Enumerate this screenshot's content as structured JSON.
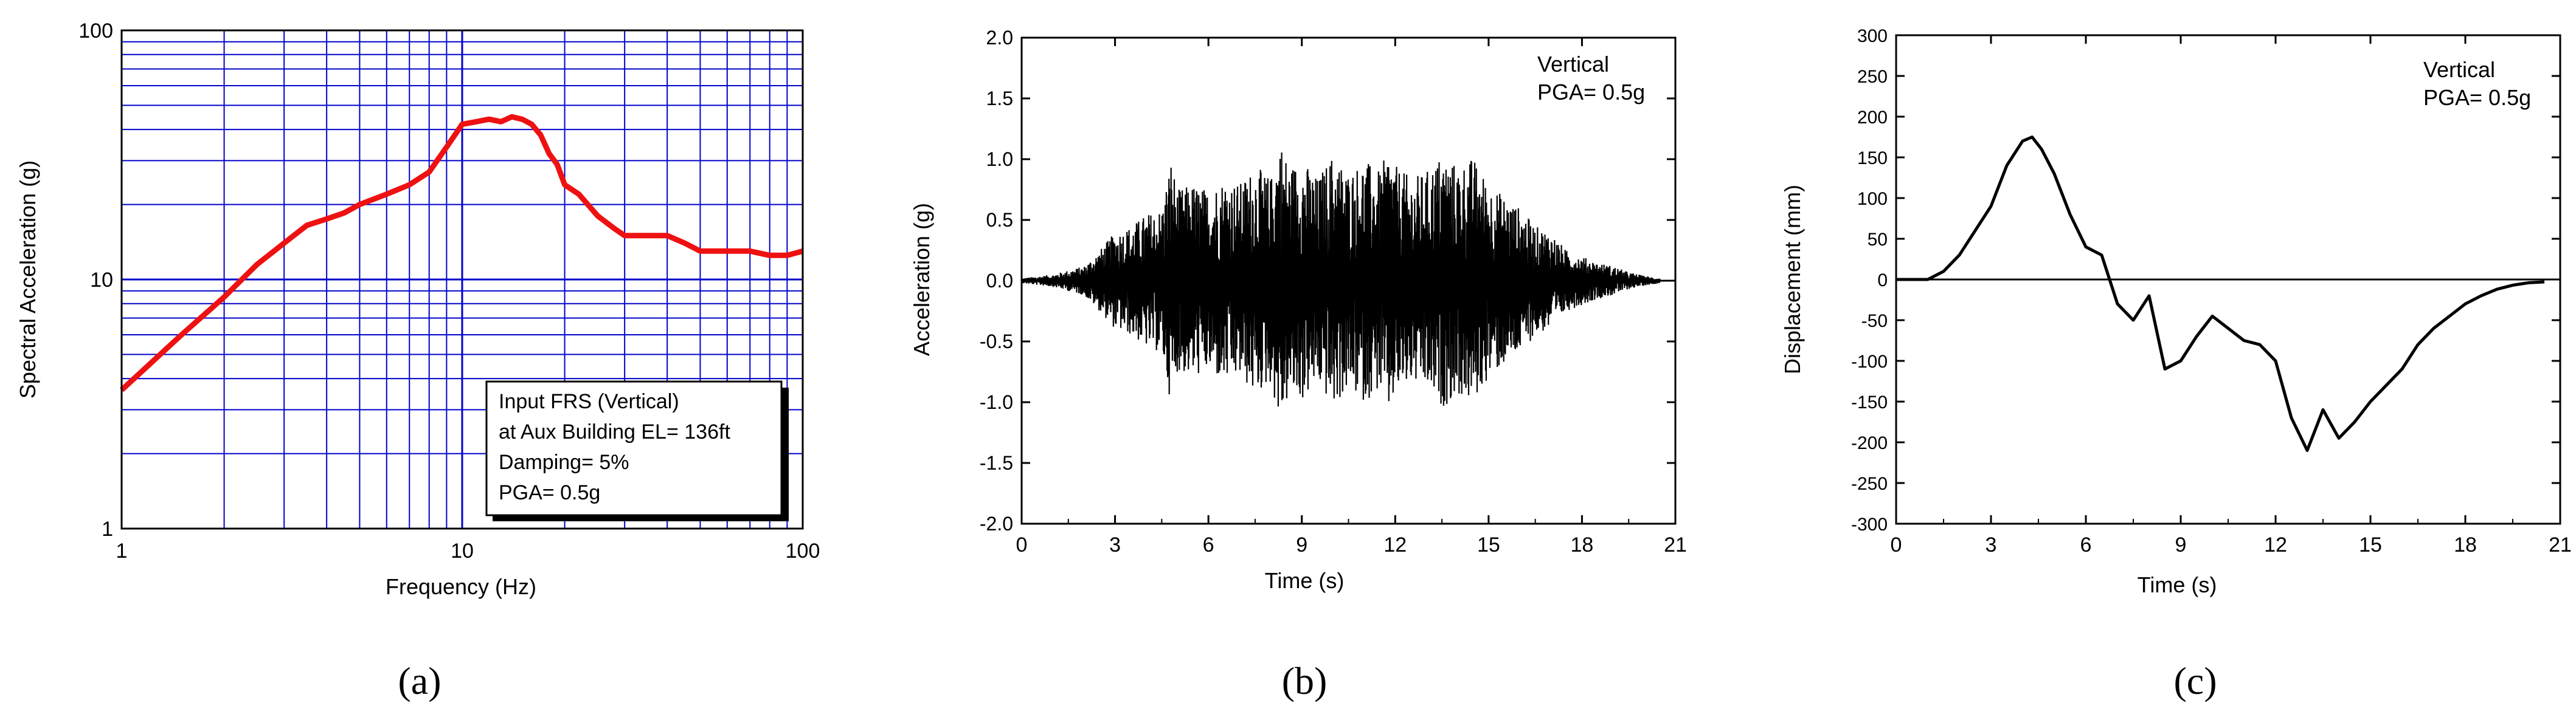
{
  "chart_data": [
    {
      "type": "line",
      "panel_label": "(a)",
      "x_scale": "log",
      "y_scale": "log",
      "xlabel": "Frequency (Hz)",
      "ylabel": "Spectral Acceleration (g)",
      "xlim": [
        1,
        100
      ],
      "ylim": [
        1,
        100
      ],
      "x_ticks": [
        {
          "value": 1,
          "label": "1"
        },
        {
          "value": 10,
          "label": "10"
        },
        {
          "value": 100,
          "label": "100"
        }
      ],
      "y_ticks": [
        {
          "value": 1,
          "label": "1"
        },
        {
          "value": 10,
          "label": "10"
        },
        {
          "value": 100,
          "label": "100"
        }
      ],
      "grid": true,
      "grid_color": "#0000cc",
      "line_color": "#ee1111",
      "legend_position": "bottom-right",
      "legend_lines": [
        "Input FRS (Vertical)",
        "at Aux Building EL= 136ft",
        "Damping= 5%",
        "PGA= 0.5g"
      ],
      "series": [
        {
          "x": [
            1,
            1.5,
            2,
            2.5,
            3,
            3.5,
            4,
            4.5,
            5,
            6,
            7,
            8,
            9,
            10,
            11,
            12,
            13,
            14,
            15,
            16,
            17,
            18,
            19,
            20,
            22,
            25,
            28,
            30,
            35,
            40,
            45,
            50,
            60,
            70,
            80,
            90,
            100
          ],
          "y": [
            3.6,
            6.0,
            8.5,
            11.5,
            14.0,
            16.5,
            17.5,
            18.5,
            20,
            22,
            24,
            27,
            34,
            42,
            43,
            44,
            43,
            45,
            44,
            42,
            38,
            32,
            29,
            24,
            22,
            18,
            16,
            15,
            15,
            15,
            14,
            13,
            13,
            13,
            12.5,
            12.5,
            13
          ]
        }
      ]
    },
    {
      "type": "line",
      "panel_label": "(b)",
      "xlabel": "Time (s)",
      "ylabel": "Acceleration (g)",
      "xlim": [
        0,
        21
      ],
      "ylim": [
        -2.0,
        2.0
      ],
      "x_ticks": [
        0,
        3,
        6,
        9,
        12,
        15,
        18,
        21
      ],
      "y_ticks": [
        "-2.0",
        "-1.5",
        "-1.0",
        "-0.5",
        "0.0",
        "0.5",
        "1.0",
        "1.5",
        "2.0"
      ],
      "grid": false,
      "line_color": "#000000",
      "annotation": [
        "Vertical",
        "PGA= 0.5g"
      ],
      "annotation_position": "top-right",
      "series": [
        {
          "x": [
            0,
            1,
            2,
            2.5,
            3,
            3.5,
            4,
            4.5,
            4.8,
            5,
            5.5,
            6,
            6.5,
            7,
            7.5,
            8,
            8.3,
            8.6,
            9,
            9.5,
            10,
            10.5,
            11,
            11.5,
            11.8,
            12,
            12.5,
            13,
            13.5,
            14,
            14.5,
            15,
            15.5,
            16,
            16.5,
            17,
            17.5,
            18,
            18.5,
            19,
            19.5,
            20,
            20.5
          ],
          "y_envelope": [
            0.02,
            0.05,
            0.12,
            0.25,
            0.4,
            0.45,
            0.55,
            0.6,
            1.02,
            0.75,
            0.8,
            0.75,
            0.85,
            0.8,
            0.95,
            0.85,
            1.18,
            0.95,
            1.0,
            0.85,
            1.05,
            0.9,
            1.0,
            0.9,
            1.1,
            0.95,
            0.85,
            0.9,
            1.05,
            0.95,
            1.02,
            0.8,
            0.7,
            0.6,
            0.45,
            0.4,
            0.25,
            0.2,
            0.15,
            0.12,
            0.07,
            0.04,
            0.02
          ],
          "y_min_annotated": -1.05,
          "y_max_annotated": 1.18
        }
      ]
    },
    {
      "type": "line",
      "panel_label": "(c)",
      "xlabel": "Time (s)",
      "ylabel": "Displacement (mm)",
      "xlim": [
        0,
        21
      ],
      "ylim": [
        -300,
        300
      ],
      "x_ticks": [
        0,
        3,
        6,
        9,
        12,
        15,
        18,
        21
      ],
      "y_ticks": [
        -300,
        -250,
        -200,
        -150,
        -100,
        -50,
        0,
        50,
        100,
        150,
        200,
        250,
        300
      ],
      "grid": false,
      "line_color": "#000000",
      "annotation": [
        "Vertical",
        "PGA= 0.5g"
      ],
      "annotation_position": "top-right",
      "series": [
        {
          "x": [
            0,
            0.5,
            1,
            1.5,
            2,
            2.5,
            3,
            3.5,
            4,
            4.3,
            4.6,
            5,
            5.5,
            6,
            6.5,
            7,
            7.5,
            8,
            8.5,
            9,
            9.5,
            10,
            10.5,
            11,
            11.5,
            12,
            12.5,
            13,
            13.5,
            14,
            14.5,
            15,
            15.5,
            16,
            16.5,
            17,
            17.5,
            18,
            18.5,
            19,
            19.5,
            20,
            20.5
          ],
          "y": [
            0,
            0,
            0,
            10,
            30,
            60,
            90,
            140,
            170,
            175,
            160,
            130,
            80,
            40,
            30,
            -30,
            -50,
            -20,
            -110,
            -100,
            -70,
            -45,
            -60,
            -75,
            -80,
            -100,
            -170,
            -210,
            -160,
            -195,
            -175,
            -150,
            -130,
            -110,
            -80,
            -60,
            -45,
            -30,
            -20,
            -12,
            -7,
            -4,
            -3
          ]
        }
      ]
    }
  ]
}
